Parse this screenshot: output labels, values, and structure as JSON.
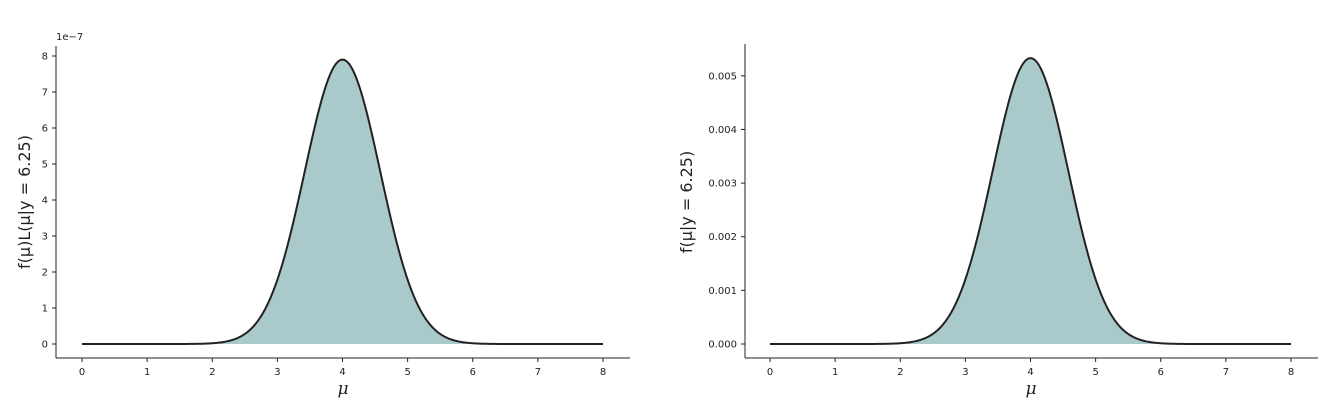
{
  "chart_data": [
    {
      "type": "area",
      "xlabel": "μ",
      "ylabel": "f(μ)L(μ|y = 6.25)",
      "y_offset_label": "1e−7",
      "xlim": [
        0,
        8
      ],
      "ylim": [
        0,
        8
      ],
      "x_ticks": [
        "0",
        "1",
        "2",
        "3",
        "4",
        "5",
        "6",
        "7",
        "8"
      ],
      "y_ticks": [
        "0",
        "1",
        "2",
        "3",
        "4",
        "5",
        "6",
        "7",
        "8"
      ],
      "curve": {
        "shape": "normal",
        "mean": 4.0,
        "sd": 0.58,
        "peak": 7.9
      },
      "fill_color": "#a9c9cb",
      "line_color": "#222222",
      "grid": false
    },
    {
      "type": "area",
      "xlabel": "μ",
      "ylabel": "f(μ|y = 6.25)",
      "xlim": [
        0,
        8
      ],
      "ylim": [
        0,
        0.0055
      ],
      "x_ticks": [
        "0",
        "1",
        "2",
        "3",
        "4",
        "5",
        "6",
        "7",
        "8"
      ],
      "y_ticks": [
        "0.000",
        "0.001",
        "0.002",
        "0.003",
        "0.004",
        "0.005"
      ],
      "curve": {
        "shape": "normal",
        "mean": 4.0,
        "sd": 0.58,
        "peak": 0.00533
      },
      "fill_color": "#a9c9cb",
      "line_color": "#222222",
      "grid": false
    }
  ]
}
